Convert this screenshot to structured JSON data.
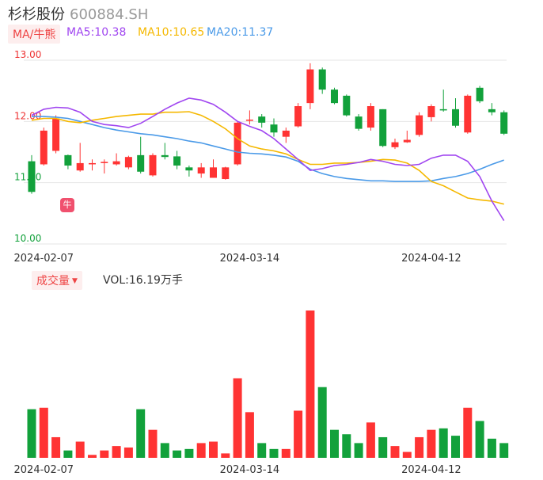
{
  "header": {
    "name": "杉杉股份",
    "code": "600884.SH"
  },
  "legend": {
    "ma_tag": "MA/牛熊",
    "ma5": "MA5:10.38",
    "ma10": "MA10:10.65",
    "ma20": "MA20:11.37"
  },
  "colors": {
    "up": "#ff3333",
    "down": "#12a13b",
    "ma5": "#a046f0",
    "ma10": "#f5b800",
    "ma20": "#4a9ae8",
    "grid": "#e6e6e6"
  },
  "icons": {
    "badge": "bull-bear-icon",
    "badge_glyph": "牛"
  },
  "volume": {
    "tag": "成交量",
    "caret": "▼",
    "label": "VOL:16.19万手"
  },
  "chart_data": {
    "type": "candlestick",
    "price_axis": {
      "ticks": [
        "13.00",
        "12.00",
        "11.00",
        "10.00"
      ],
      "ylim": [
        10.0,
        13.0
      ]
    },
    "x_ticks": [
      "2024-02-07",
      "2024-03-14",
      "2024-04-12"
    ],
    "x_tick_index": [
      1,
      18,
      33
    ],
    "ohlc": [
      [
        11.35,
        10.85,
        11.45,
        10.82
      ],
      [
        11.3,
        11.85,
        11.9,
        11.28
      ],
      [
        11.52,
        12.05,
        12.1,
        11.48
      ],
      [
        11.45,
        11.28,
        11.46,
        11.22
      ],
      [
        11.2,
        11.32,
        11.65,
        11.18
      ],
      [
        11.3,
        11.32,
        11.38,
        11.2
      ],
      [
        11.32,
        11.34,
        11.38,
        11.15
      ],
      [
        11.3,
        11.35,
        11.48,
        11.28
      ],
      [
        11.25,
        11.42,
        11.44,
        11.22
      ],
      [
        11.45,
        11.18,
        11.75,
        11.15
      ],
      [
        11.12,
        11.45,
        11.48,
        11.1
      ],
      [
        11.45,
        11.42,
        11.65,
        11.38
      ],
      [
        11.43,
        11.28,
        11.52,
        11.22
      ],
      [
        11.25,
        11.2,
        11.28,
        11.1
      ],
      [
        11.15,
        11.25,
        11.32,
        11.08
      ],
      [
        11.08,
        11.25,
        11.38,
        11.08
      ],
      [
        11.06,
        11.25,
        11.26,
        11.05
      ],
      [
        11.3,
        11.98,
        12.0,
        11.28
      ],
      [
        12.03,
        12.03,
        12.18,
        11.95
      ],
      [
        12.08,
        11.98,
        12.12,
        11.9
      ],
      [
        11.95,
        11.82,
        12.05,
        11.75
      ],
      [
        11.75,
        11.85,
        11.9,
        11.65
      ],
      [
        11.92,
        12.25,
        12.3,
        11.9
      ],
      [
        12.3,
        12.85,
        12.95,
        12.2
      ],
      [
        12.85,
        12.52,
        12.88,
        12.45
      ],
      [
        12.52,
        12.3,
        12.55,
        12.28
      ],
      [
        12.42,
        12.1,
        12.44,
        12.08
      ],
      [
        12.08,
        11.88,
        12.12,
        11.85
      ],
      [
        11.9,
        12.25,
        12.3,
        11.85
      ],
      [
        12.2,
        11.6,
        12.2,
        11.58
      ],
      [
        11.58,
        11.66,
        11.72,
        11.55
      ],
      [
        11.66,
        11.7,
        11.85,
        11.65
      ],
      [
        11.78,
        12.1,
        12.15,
        11.75
      ],
      [
        12.07,
        12.25,
        12.28,
        12.0
      ],
      [
        12.2,
        12.18,
        12.52,
        12.16
      ],
      [
        12.2,
        11.93,
        12.38,
        11.9
      ],
      [
        11.82,
        12.42,
        12.44,
        11.8
      ],
      [
        12.55,
        12.33,
        12.58,
        12.3
      ],
      [
        12.2,
        12.15,
        12.3,
        12.1
      ],
      [
        12.15,
        11.8,
        12.18,
        11.78
      ]
    ],
    "ma5": [
      12.1,
      12.2,
      12.23,
      12.22,
      12.15,
      12.0,
      11.95,
      11.93,
      11.9,
      11.97,
      12.08,
      12.2,
      12.3,
      12.38,
      12.35,
      12.28,
      12.15,
      12.0,
      11.92,
      11.85,
      11.72,
      11.55,
      11.38,
      11.2,
      11.23,
      11.28,
      11.3,
      11.33,
      11.38,
      11.35,
      11.3,
      11.28,
      11.3,
      11.4,
      11.45,
      11.45,
      11.35,
      11.1,
      10.7,
      10.38
    ],
    "ma10": [
      12.02,
      12.05,
      12.05,
      12.0,
      11.98,
      12.02,
      12.05,
      12.08,
      12.1,
      12.12,
      12.12,
      12.15,
      12.15,
      12.16,
      12.1,
      12.0,
      11.88,
      11.72,
      11.6,
      11.55,
      11.52,
      11.47,
      11.38,
      11.3,
      11.3,
      11.32,
      11.32,
      11.33,
      11.35,
      11.38,
      11.37,
      11.32,
      11.2,
      11.02,
      10.95,
      10.85,
      10.75,
      10.72,
      10.7,
      10.65
    ],
    "ma20": [
      12.08,
      12.08,
      12.07,
      12.05,
      12.0,
      11.95,
      11.9,
      11.86,
      11.83,
      11.8,
      11.78,
      11.75,
      11.72,
      11.68,
      11.65,
      11.6,
      11.55,
      11.5,
      11.48,
      11.47,
      11.45,
      11.42,
      11.35,
      11.22,
      11.15,
      11.1,
      11.07,
      11.05,
      11.03,
      11.03,
      11.02,
      11.02,
      11.02,
      11.03,
      11.07,
      11.1,
      11.15,
      11.22,
      11.3,
      11.37
    ],
    "volume_relative": [
      0.33,
      0.34,
      0.14,
      0.05,
      0.11,
      0.02,
      0.05,
      0.08,
      0.07,
      0.33,
      0.19,
      0.1,
      0.05,
      0.06,
      0.1,
      0.11,
      0.03,
      0.54,
      0.31,
      0.1,
      0.06,
      0.06,
      0.32,
      1.0,
      0.48,
      0.19,
      0.16,
      0.1,
      0.24,
      0.14,
      0.08,
      0.04,
      0.14,
      0.19,
      0.2,
      0.15,
      0.34,
      0.25,
      0.13,
      0.1
    ]
  }
}
